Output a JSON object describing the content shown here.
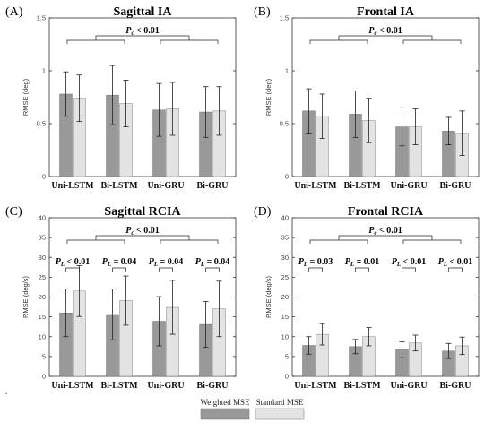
{
  "chart_data": [
    {
      "panel": "(A)",
      "title": "Sagittal IA",
      "type": "bar",
      "ylabel": "RMSE (deg)",
      "ylim": [
        0,
        1.5
      ],
      "yticks": [
        0,
        0.5,
        1,
        1.5
      ],
      "categories": [
        "Uni-LSTM",
        "Bi-LSTM",
        "Uni-GRU",
        "Bi-GRU"
      ],
      "series": [
        {
          "name": "Weighted MSE",
          "values": [
            0.78,
            0.77,
            0.63,
            0.61
          ],
          "err": [
            0.21,
            0.28,
            0.25,
            0.24
          ]
        },
        {
          "name": "Standard MSE",
          "values": [
            0.74,
            0.69,
            0.64,
            0.62
          ],
          "err": [
            0.22,
            0.22,
            0.25,
            0.23
          ]
        }
      ],
      "annotations": [
        {
          "text": "Pc < 0.01",
          "main": "P",
          "sub": "c",
          "rest": " < 0.01",
          "level": "overall"
        }
      ]
    },
    {
      "panel": "(B)",
      "title": "Frontal IA",
      "type": "bar",
      "ylabel": "RMSE (deg)",
      "ylim": [
        0,
        1.5
      ],
      "yticks": [
        0,
        0.5,
        1,
        1.5
      ],
      "categories": [
        "Uni-LSTM",
        "Bi-LSTM",
        "Uni-GRU",
        "Bi-GRU"
      ],
      "series": [
        {
          "name": "Weighted MSE",
          "values": [
            0.62,
            0.59,
            0.47,
            0.43
          ],
          "err": [
            0.21,
            0.22,
            0.18,
            0.13
          ]
        },
        {
          "name": "Standard MSE",
          "values": [
            0.57,
            0.53,
            0.47,
            0.41
          ],
          "err": [
            0.21,
            0.21,
            0.17,
            0.21
          ]
        }
      ],
      "annotations": [
        {
          "text": "Pc < 0.01",
          "main": "P",
          "sub": "c",
          "rest": " < 0.01",
          "level": "overall"
        }
      ]
    },
    {
      "panel": "(C)",
      "title": "Sagittal RCIA",
      "type": "bar",
      "ylabel": "RMSE (deg/s)",
      "ylim": [
        0,
        40
      ],
      "yticks": [
        0,
        5,
        10,
        15,
        20,
        25,
        30,
        35,
        40
      ],
      "categories": [
        "Uni-LSTM",
        "Bi-LSTM",
        "Uni-GRU",
        "Bi-GRU"
      ],
      "series": [
        {
          "name": "Weighted MSE",
          "values": [
            16.0,
            15.6,
            13.9,
            13.1
          ],
          "err": [
            6.0,
            6.4,
            6.2,
            5.8
          ]
        },
        {
          "name": "Standard MSE",
          "values": [
            21.5,
            19.1,
            17.4,
            17.0
          ],
          "err": [
            6.4,
            6.2,
            6.8,
            7.0
          ]
        }
      ],
      "annotations": [
        {
          "text": "Pc < 0.01",
          "main": "P",
          "sub": "c",
          "rest": " < 0.01",
          "level": "overall"
        },
        {
          "text": "PL < 0.01",
          "main": "P",
          "sub": "L",
          "rest": " < 0.01",
          "level": "group",
          "group": 0
        },
        {
          "text": "PL = 0.04",
          "main": "P",
          "sub": "L",
          "rest": " = 0.04",
          "level": "group",
          "group": 1
        },
        {
          "text": "PL = 0.04",
          "main": "P",
          "sub": "L",
          "rest": " = 0.04",
          "level": "group",
          "group": 2
        },
        {
          "text": "PL = 0.04",
          "main": "P",
          "sub": "L",
          "rest": " = 0.04",
          "level": "group",
          "group": 3
        }
      ]
    },
    {
      "panel": "(D)",
      "title": "Frontal RCIA",
      "type": "bar",
      "ylabel": "RMSE (deg/s)",
      "ylim": [
        0,
        40
      ],
      "yticks": [
        0,
        5,
        10,
        15,
        20,
        25,
        30,
        35,
        40
      ],
      "categories": [
        "Uni-LSTM",
        "Bi-LSTM",
        "Uni-GRU",
        "Bi-GRU"
      ],
      "series": [
        {
          "name": "Weighted MSE",
          "values": [
            7.8,
            7.5,
            6.7,
            6.4
          ],
          "err": [
            2.2,
            1.8,
            2.0,
            1.9
          ]
        },
        {
          "name": "Standard MSE",
          "values": [
            10.6,
            10.0,
            8.4,
            7.7
          ],
          "err": [
            2.7,
            2.3,
            2.0,
            2.2
          ]
        }
      ],
      "annotations": [
        {
          "text": "Pc < 0.01",
          "main": "P",
          "sub": "c",
          "rest": " < 0.01",
          "level": "overall"
        },
        {
          "text": "PL = 0.03",
          "main": "P",
          "sub": "L",
          "rest": " = 0.03",
          "level": "group",
          "group": 0
        },
        {
          "text": "PL = 0.01",
          "main": "P",
          "sub": "L",
          "rest": " = 0.01",
          "level": "group",
          "group": 1
        },
        {
          "text": "PL < 0.01",
          "main": "P",
          "sub": "L",
          "rest": " < 0.01",
          "level": "group",
          "group": 2
        },
        {
          "text": "PL < 0.01",
          "main": "P",
          "sub": "L",
          "rest": " < 0.01",
          "level": "group",
          "group": 3
        }
      ]
    }
  ],
  "legend": {
    "items": [
      {
        "label": "Weighted MSE",
        "color": "#999999"
      },
      {
        "label": "Standard MSE",
        "color": "#e3e3e3"
      }
    ]
  },
  "colors": {
    "weighted": "#999999",
    "standard": "#e3e3e3",
    "axis": "#333333"
  },
  "footnote": "."
}
